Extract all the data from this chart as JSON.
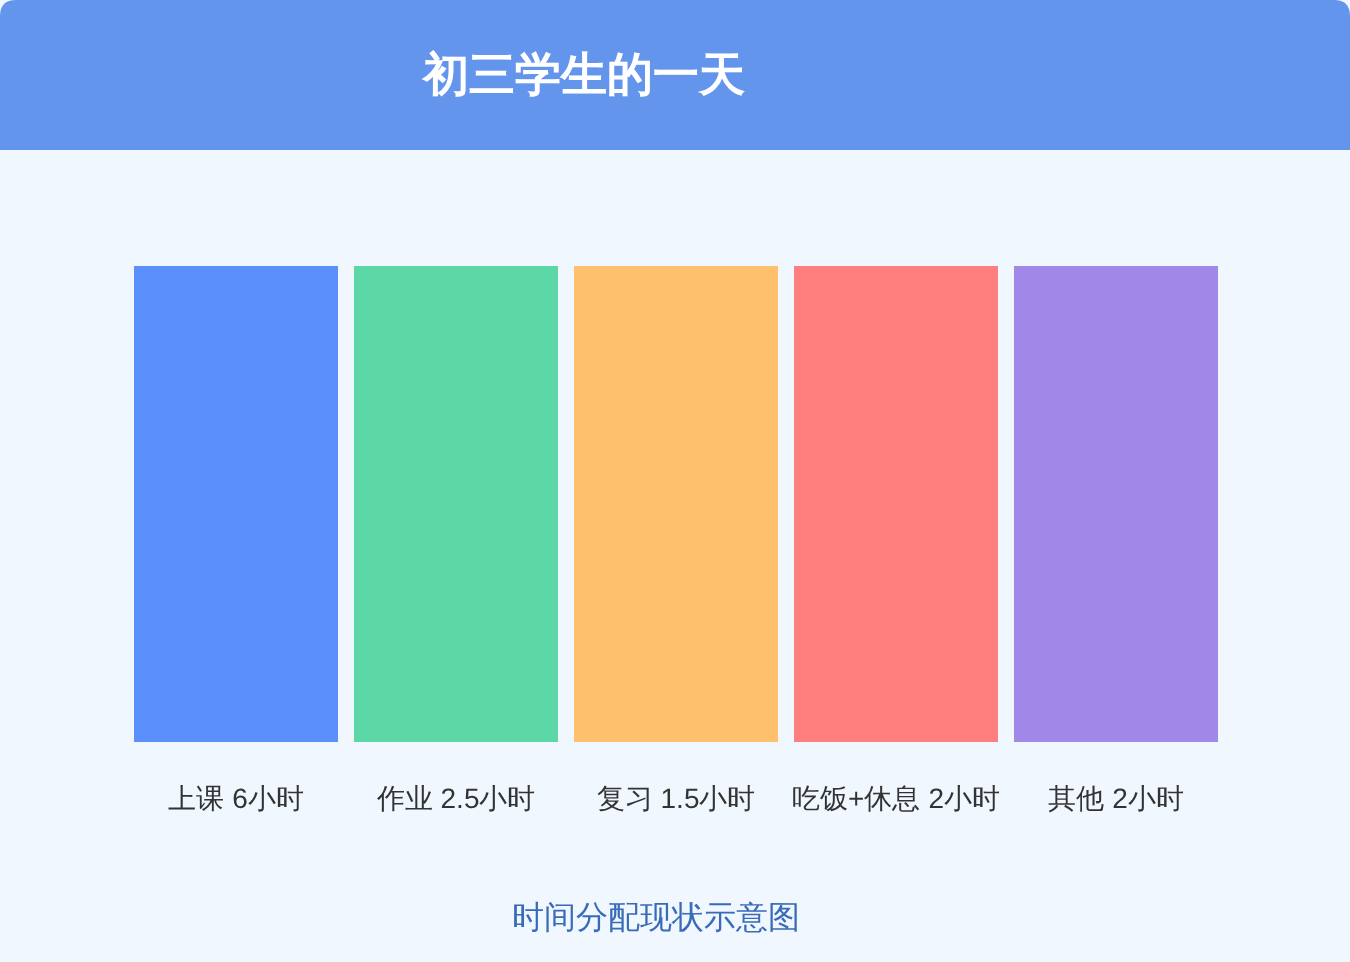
{
  "chart_data": {
    "type": "other",
    "title": "初三学生的一天",
    "categories": [
      "上课",
      "作业",
      "复习",
      "吃饭+休息",
      "其他"
    ],
    "values": [
      6,
      2.5,
      1.5,
      2,
      2
    ],
    "value_labels": [
      "6小时",
      "2.5小时",
      "1.5小时",
      "2小时",
      "2小时"
    ],
    "colors": [
      "#5b8ff9",
      "#5bd8a6",
      "#ffc06b",
      "#ff7f7f",
      "#a187e8"
    ],
    "annotations": [
      "时间分配现状示意图"
    ]
  }
}
